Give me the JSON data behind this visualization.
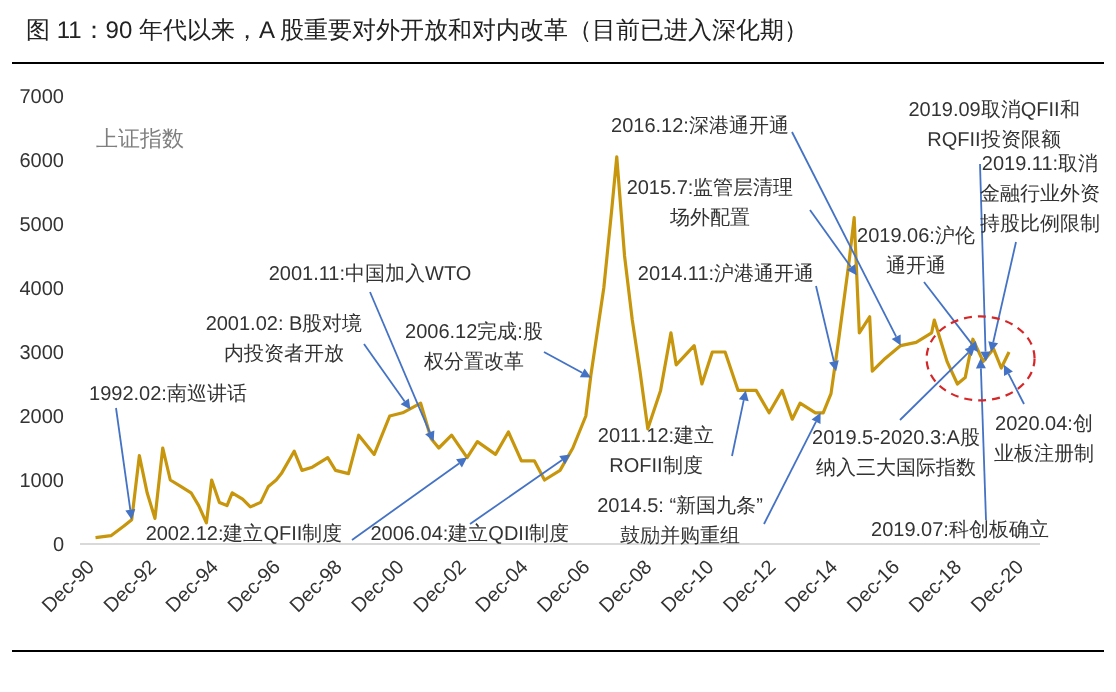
{
  "chart_data": {
    "type": "line",
    "title": "图 11：90 年代以来，A 股重要对外开放和对内改革（目前已进入深化期）",
    "ylabel": "上证指数",
    "x": [
      "1990-12",
      "1991-06",
      "1991-11",
      "1992-02",
      "1992-05",
      "1992-08",
      "1992-11",
      "1993-02",
      "1993-05",
      "1993-09",
      "1994-01",
      "1994-04",
      "1994-07",
      "1994-09",
      "1994-12",
      "1995-03",
      "1995-05",
      "1995-09",
      "1995-12",
      "1996-04",
      "1996-07",
      "1996-10",
      "1996-12",
      "1997-05",
      "1997-08",
      "1997-12",
      "1998-06",
      "1998-09",
      "1999-02",
      "1999-06",
      "1999-12",
      "2000-06",
      "2000-11",
      "2001-06",
      "2001-10",
      "2002-01",
      "2002-06",
      "2002-12",
      "2003-04",
      "2003-11",
      "2004-04",
      "2004-09",
      "2005-02",
      "2005-06",
      "2005-12",
      "2006-05",
      "2006-10",
      "2006-12",
      "2007-05",
      "2007-08",
      "2007-10",
      "2008-01",
      "2008-04",
      "2008-07",
      "2008-10",
      "2009-03",
      "2009-07",
      "2009-09",
      "2010-04",
      "2010-07",
      "2010-11",
      "2011-04",
      "2011-09",
      "2012-04",
      "2012-09",
      "2013-02",
      "2013-06",
      "2013-09",
      "2014-03",
      "2014-06",
      "2014-09",
      "2014-12",
      "2015-04",
      "2015-06",
      "2015-08",
      "2015-12",
      "2016-01",
      "2016-06",
      "2016-12",
      "2017-06",
      "2017-12",
      "2018-01",
      "2018-06",
      "2018-10",
      "2019-01",
      "2019-04",
      "2019-08",
      "2019-12",
      "2020-03",
      "2020-06"
    ],
    "series": [
      {
        "color": "#c8960c",
        "values": [
          100,
          130,
          280,
          380,
          1380,
          800,
          400,
          1500,
          1000,
          900,
          800,
          600,
          330,
          1000,
          650,
          600,
          800,
          700,
          580,
          650,
          900,
          1000,
          1100,
          1450,
          1150,
          1200,
          1350,
          1150,
          1100,
          1700,
          1400,
          2000,
          2050,
          2200,
          1650,
          1500,
          1700,
          1350,
          1600,
          1400,
          1750,
          1300,
          1300,
          1000,
          1150,
          1500,
          2000,
          2650,
          4000,
          5200,
          6050,
          4500,
          3500,
          2700,
          1800,
          2400,
          3300,
          2800,
          3100,
          2500,
          3000,
          3000,
          2400,
          2400,
          2050,
          2400,
          1950,
          2200,
          2050,
          2050,
          2350,
          3200,
          4400,
          5100,
          3300,
          3550,
          2700,
          2900,
          3100,
          3150,
          3300,
          3500,
          2850,
          2500,
          2600,
          3200,
          2850,
          3050,
          2750,
          3000
        ]
      }
    ],
    "xlim": [
      "1990-06",
      "2021-06"
    ],
    "xticks": [
      {
        "value": "1990-12",
        "label": "Dec-90"
      },
      {
        "value": "1992-12",
        "label": "Dec-92"
      },
      {
        "value": "1994-12",
        "label": "Dec-94"
      },
      {
        "value": "1996-12",
        "label": "Dec-96"
      },
      {
        "value": "1998-12",
        "label": "Dec-98"
      },
      {
        "value": "2000-12",
        "label": "Dec-00"
      },
      {
        "value": "2002-12",
        "label": "Dec-02"
      },
      {
        "value": "2004-12",
        "label": "Dec-04"
      },
      {
        "value": "2006-12",
        "label": "Dec-06"
      },
      {
        "value": "2008-12",
        "label": "Dec-08"
      },
      {
        "value": "2010-12",
        "label": "Dec-10"
      },
      {
        "value": "2012-12",
        "label": "Dec-12"
      },
      {
        "value": "2014-12",
        "label": "Dec-14"
      },
      {
        "value": "2016-12",
        "label": "Dec-16"
      },
      {
        "value": "2018-12",
        "label": "Dec-18"
      },
      {
        "value": "2020-12",
        "label": "Dec-20"
      }
    ],
    "ylim": [
      0,
      7000
    ],
    "yticks": [
      0,
      1000,
      2000,
      3000,
      4000,
      5000,
      6000,
      7000
    ],
    "grid": false,
    "legend": false,
    "marker": "none",
    "line_style": "solid",
    "annotations": [
      {
        "text": "1992.02:南巡讲话",
        "x": "1992-02",
        "y": 380
      },
      {
        "text": "2001.02: B股对境内投资者开放",
        "x": "2001-02",
        "y": 2100
      },
      {
        "text": "2001.11:中国加入WTO",
        "x": "2001-11",
        "y": 1600
      },
      {
        "text": "2002.12:建立QFII制度",
        "x": "2002-12",
        "y": 1350
      },
      {
        "text": "2006.12完成:股权分置改革",
        "x": "2006-12",
        "y": 2600
      },
      {
        "text": "2006.04:建立QDII制度",
        "x": "2006-04",
        "y": 1400
      },
      {
        "text": "2011.12:建立ROFII制度",
        "x": "2011-12",
        "y": 2400
      },
      {
        "text": "2014.5: “新国九条”鼓励并购重组",
        "x": "2014-05",
        "y": 2050
      },
      {
        "text": "2014.11:沪港通开通",
        "x": "2014-11",
        "y": 2700
      },
      {
        "text": "2015.7:监管层清理场外配置",
        "x": "2015-07",
        "y": 4200
      },
      {
        "text": "2016.12:深港通开通",
        "x": "2016-12",
        "y": 3100
      },
      {
        "text": "2019.09取消QFII和RQFII投资限额",
        "x": "2019-09",
        "y": 2850
      },
      {
        "text": "2019.11:取消金融行业外资持股比例限制",
        "x": "2019-11",
        "y": 3000
      },
      {
        "text": "2019.06:沪伦通开通",
        "x": "2019-06",
        "y": 3000
      },
      {
        "text": "2019.5-2020.3:A股纳入三大国际指数",
        "x": "2019-05",
        "y": 3100
      },
      {
        "text": "2020.04:创业板注册制",
        "x": "2020-04",
        "y": 2800
      },
      {
        "text": "2019.07:科创板确立",
        "x": "2019-07",
        "y": 2900
      }
    ]
  }
}
